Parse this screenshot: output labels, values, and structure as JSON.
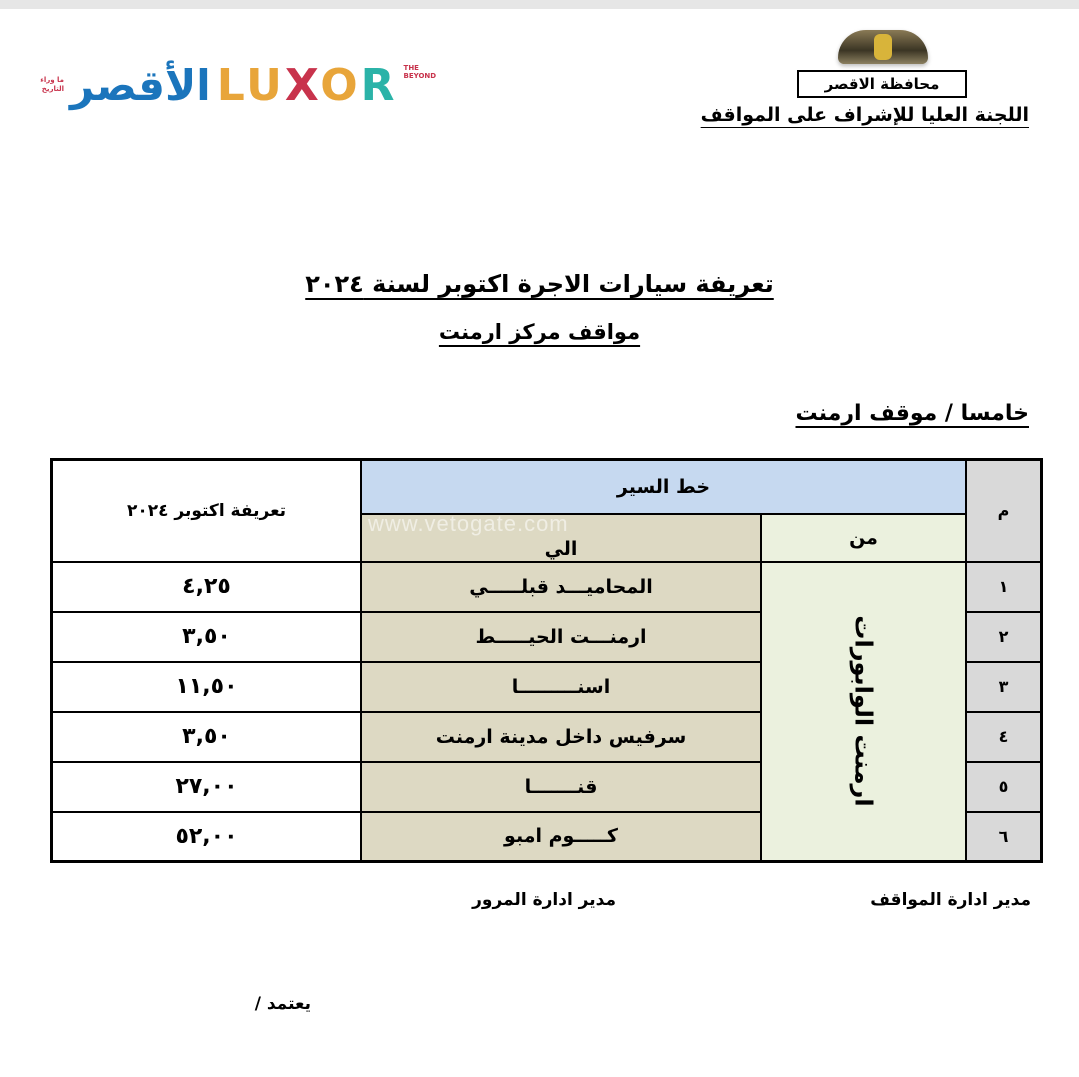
{
  "header": {
    "governorate": "محافظة الاقصر",
    "committee": "اللجنة العليا للإشراف على المواقف",
    "logo": {
      "arabic": "الأقصر",
      "english": "LUXOR",
      "tagline": "THE BEYOND",
      "arabic_tagline": "ما وراء التاريخ",
      "colors": [
        "#1b75bc",
        "#e8a53a",
        "#c8334c",
        "#2bb3a8"
      ]
    }
  },
  "title": "تعريفة سيارات الاجرة اكتوبر لسنة ٢٠٢٤",
  "subtitle": "مواقف مركز ارمنت",
  "section": "خامسا / موقف ارمنت",
  "table": {
    "headers": {
      "num": "م",
      "route": "خط السير",
      "from": "من",
      "to": "الي",
      "fare": "تعريفة اكتوبر ٢٠٢٤"
    },
    "from_value": "ارمنت الوابورات",
    "rows": [
      {
        "num": "١",
        "to": "المحاميـــد قبلـــــي",
        "fare": "٤,٢٥"
      },
      {
        "num": "٢",
        "to": "ارمنـــت الحيـــــط",
        "fare": "٣,٥٠"
      },
      {
        "num": "٣",
        "to": "اسنـــــــــا",
        "fare": "١١,٥٠"
      },
      {
        "num": "٤",
        "to": "سرفيس داخل مدينة ارمنت",
        "fare": "٣,٥٠"
      },
      {
        "num": "٥",
        "to": "قنـــــــا",
        "fare": "٢٧,٠٠"
      },
      {
        "num": "٦",
        "to": "كـــــوم امبو",
        "fare": "٥٢,٠٠"
      }
    ],
    "colors": {
      "route_header": "#c6d9f0",
      "to_column": "#ddd9c3",
      "from_column": "#ebf1de",
      "num_column": "#d9d9d9"
    }
  },
  "watermark": "www.vetogate.com",
  "signatures": {
    "parking": "مدير ادارة المواقف",
    "traffic": "مدير ادارة المرور",
    "approve": "يعتمد /"
  }
}
